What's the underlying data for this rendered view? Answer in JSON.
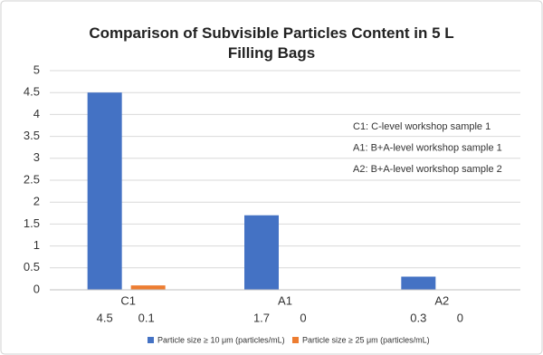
{
  "chart_data": {
    "type": "bar",
    "title": "Comparison of Subvisible Particles Content in 5 L Filling Bags",
    "categories": [
      "C1",
      "A1",
      "A2"
    ],
    "series": [
      {
        "name": "Particle size ≥ 10 μm (particles/mL)",
        "color": "#4472c4",
        "values": [
          4.5,
          1.7,
          0.3
        ]
      },
      {
        "name": "Particle size ≥ 25 μm (particles/mL)",
        "color": "#ed7d31",
        "values": [
          0.1,
          0,
          0
        ]
      }
    ],
    "annotations": [
      "C1: C-level workshop sample 1",
      "A1: B+A-level workshop sample 1",
      "A2: B+A-level workshop sample 2"
    ],
    "ylim": [
      0,
      5
    ],
    "yticks": [
      0,
      0.5,
      1,
      1.5,
      2,
      2.5,
      3,
      3.5,
      4,
      4.5,
      5
    ],
    "grid": true,
    "legend": "bottom"
  }
}
